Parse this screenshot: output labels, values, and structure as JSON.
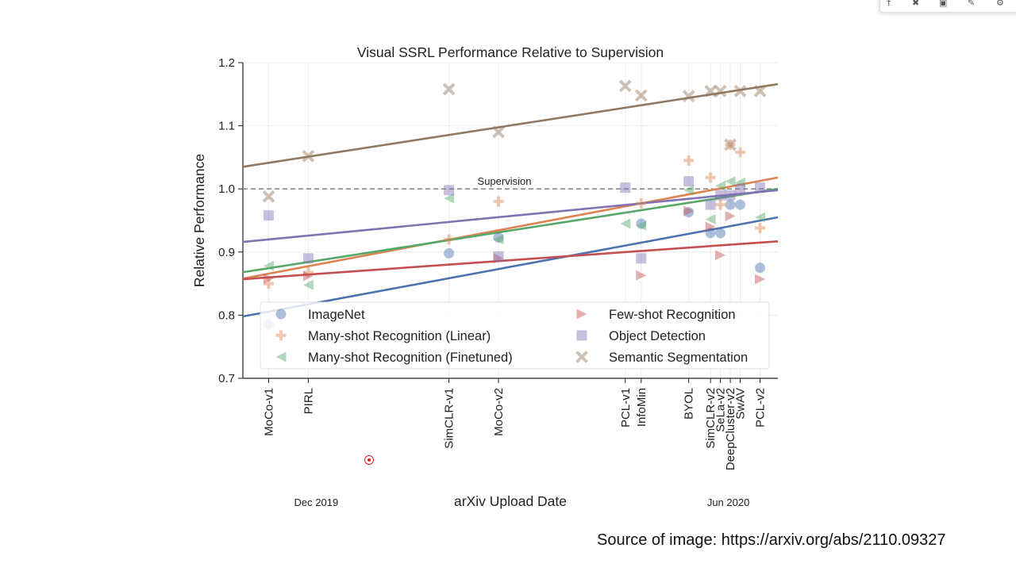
{
  "chart_data": {
    "type": "scatter",
    "title": "Visual SSRL Performance Relative to Supervision",
    "xlabel": "arXiv Upload Date",
    "ylabel": "Relative Performance",
    "ylim": [
      0.7,
      1.2
    ],
    "yticks": [
      0.7,
      0.8,
      0.9,
      1.0,
      1.1,
      1.2
    ],
    "ytick_labels": [
      "0.7",
      "0.8",
      "0.9",
      "1.0",
      "1.1",
      "1.2"
    ],
    "xlim": [
      "2019-11-01",
      "2020-07-28"
    ],
    "x_tick_labels": [
      {
        "date": "2019-11-14",
        "label": "MoCo-v1"
      },
      {
        "date": "2019-12-04",
        "label": "PIRL"
      },
      {
        "date": "2020-02-13",
        "label": "SimCLR-v1"
      },
      {
        "date": "2020-03-09",
        "label": "MoCo-v2"
      },
      {
        "date": "2020-05-12",
        "label": "PCL-v1"
      },
      {
        "date": "2020-05-20",
        "label": "InfoMin"
      },
      {
        "date": "2020-06-13",
        "label": "BYOL"
      },
      {
        "date": "2020-06-24",
        "label": "SimCLR-v2"
      },
      {
        "date": "2020-06-29",
        "label": "SeLa-v2"
      },
      {
        "date": "2020-07-04",
        "label": "DeepCluster-v2"
      },
      {
        "date": "2020-07-09",
        "label": "SwAV"
      },
      {
        "date": "2020-07-19",
        "label": "PCL-v2"
      }
    ],
    "period_labels": [
      {
        "date": "2019-12-08",
        "label": "Dec 2019"
      },
      {
        "date": "2020-07-03",
        "label": "Jun 2020"
      }
    ],
    "reference_line": {
      "y": 1.0,
      "label": "Supervision",
      "label_date": "2020-03-12"
    },
    "grid": true,
    "legend_position": "lower-center",
    "series": [
      {
        "name": "ImageNet",
        "marker": "circle",
        "color": "#4c72b0",
        "points": [
          {
            "x": "2019-11-14",
            "y": 0.785
          },
          {
            "x": "2020-02-13",
            "y": 0.898
          },
          {
            "x": "2020-03-09",
            "y": 0.923
          },
          {
            "x": "2020-05-20",
            "y": 0.945
          },
          {
            "x": "2020-06-13",
            "y": 0.963
          },
          {
            "x": "2020-06-24",
            "y": 0.93
          },
          {
            "x": "2020-06-29",
            "y": 0.93
          },
          {
            "x": "2020-07-04",
            "y": 0.975
          },
          {
            "x": "2020-07-09",
            "y": 0.975
          },
          {
            "x": "2020-07-19",
            "y": 0.875
          }
        ],
        "trend": [
          {
            "x": "2019-11-01",
            "y": 0.798
          },
          {
            "x": "2020-07-28",
            "y": 0.955
          }
        ]
      },
      {
        "name": "Many-shot Recognition (Linear)",
        "marker": "plus",
        "color": "#dd8452",
        "points": [
          {
            "x": "2019-11-14",
            "y": 0.85
          },
          {
            "x": "2019-12-04",
            "y": 0.868
          },
          {
            "x": "2020-02-13",
            "y": 0.92
          },
          {
            "x": "2020-03-09",
            "y": 0.98
          },
          {
            "x": "2020-05-20",
            "y": 0.977
          },
          {
            "x": "2020-06-13",
            "y": 1.045
          },
          {
            "x": "2020-06-24",
            "y": 1.018
          },
          {
            "x": "2020-06-29",
            "y": 0.975
          },
          {
            "x": "2020-07-04",
            "y": 1.07
          },
          {
            "x": "2020-07-09",
            "y": 1.058
          },
          {
            "x": "2020-07-19",
            "y": 0.938
          }
        ],
        "trend": [
          {
            "x": "2019-11-01",
            "y": 0.858
          },
          {
            "x": "2020-07-28",
            "y": 1.018
          }
        ]
      },
      {
        "name": "Many-shot Recognition (Finetuned)",
        "marker": "triangle-left",
        "color": "#55a868",
        "points": [
          {
            "x": "2019-11-14",
            "y": 0.878
          },
          {
            "x": "2019-12-04",
            "y": 0.848
          },
          {
            "x": "2020-02-13",
            "y": 0.985
          },
          {
            "x": "2020-03-09",
            "y": 0.92
          },
          {
            "x": "2020-05-12",
            "y": 0.945
          },
          {
            "x": "2020-05-20",
            "y": 0.942
          },
          {
            "x": "2020-06-13",
            "y": 0.998
          },
          {
            "x": "2020-06-24",
            "y": 0.952
          },
          {
            "x": "2020-06-29",
            "y": 1.005
          },
          {
            "x": "2020-07-04",
            "y": 1.012
          },
          {
            "x": "2020-07-09",
            "y": 1.01
          },
          {
            "x": "2020-07-19",
            "y": 0.955
          }
        ],
        "trend": [
          {
            "x": "2019-11-01",
            "y": 0.868
          },
          {
            "x": "2020-07-28",
            "y": 1.0
          }
        ]
      },
      {
        "name": "Few-shot Recognition",
        "marker": "triangle-right",
        "color": "#c44e52",
        "points": [
          {
            "x": "2019-11-14",
            "y": 0.858
          },
          {
            "x": "2019-12-04",
            "y": 0.862
          },
          {
            "x": "2020-03-09",
            "y": 0.89
          },
          {
            "x": "2020-05-20",
            "y": 0.863
          },
          {
            "x": "2020-06-13",
            "y": 0.965
          },
          {
            "x": "2020-06-24",
            "y": 0.94
          },
          {
            "x": "2020-06-29",
            "y": 0.895
          },
          {
            "x": "2020-07-04",
            "y": 0.957
          },
          {
            "x": "2020-07-19",
            "y": 0.857
          }
        ],
        "trend": [
          {
            "x": "2019-11-01",
            "y": 0.857
          },
          {
            "x": "2020-07-28",
            "y": 0.917
          }
        ]
      },
      {
        "name": "Object Detection",
        "marker": "square",
        "color": "#8172b3",
        "points": [
          {
            "x": "2019-11-14",
            "y": 0.958
          },
          {
            "x": "2019-12-04",
            "y": 0.89
          },
          {
            "x": "2020-02-13",
            "y": 0.998
          },
          {
            "x": "2020-03-09",
            "y": 0.893
          },
          {
            "x": "2020-05-12",
            "y": 1.002
          },
          {
            "x": "2020-05-20",
            "y": 0.89
          },
          {
            "x": "2020-06-13",
            "y": 1.012
          },
          {
            "x": "2020-06-24",
            "y": 0.975
          },
          {
            "x": "2020-06-29",
            "y": 0.99
          },
          {
            "x": "2020-07-04",
            "y": 0.99
          },
          {
            "x": "2020-07-09",
            "y": 1.0
          },
          {
            "x": "2020-07-19",
            "y": 1.002
          }
        ],
        "trend": [
          {
            "x": "2019-11-01",
            "y": 0.916
          },
          {
            "x": "2020-07-28",
            "y": 0.998
          }
        ]
      },
      {
        "name": "Semantic Segmentation",
        "marker": "x",
        "color": "#937860",
        "points": [
          {
            "x": "2019-11-14",
            "y": 0.988
          },
          {
            "x": "2019-12-04",
            "y": 1.052
          },
          {
            "x": "2020-02-13",
            "y": 1.158
          },
          {
            "x": "2020-03-09",
            "y": 1.09
          },
          {
            "x": "2020-05-12",
            "y": 1.163
          },
          {
            "x": "2020-05-20",
            "y": 1.148
          },
          {
            "x": "2020-06-13",
            "y": 1.147
          },
          {
            "x": "2020-06-24",
            "y": 1.155
          },
          {
            "x": "2020-06-29",
            "y": 1.155
          },
          {
            "x": "2020-07-04",
            "y": 1.07
          },
          {
            "x": "2020-07-09",
            "y": 1.155
          },
          {
            "x": "2020-07-19",
            "y": 1.155
          }
        ],
        "trend": [
          {
            "x": "2019-11-01",
            "y": 1.035
          },
          {
            "x": "2020-07-28",
            "y": 1.166
          }
        ]
      }
    ]
  },
  "source": {
    "text": "Source of image: https://arxiv.org/abs/2110.09327"
  },
  "toolbar": {
    "icons": [
      "pin-icon",
      "tools-icon",
      "record-icon",
      "pen-icon",
      "gear-icon"
    ]
  }
}
